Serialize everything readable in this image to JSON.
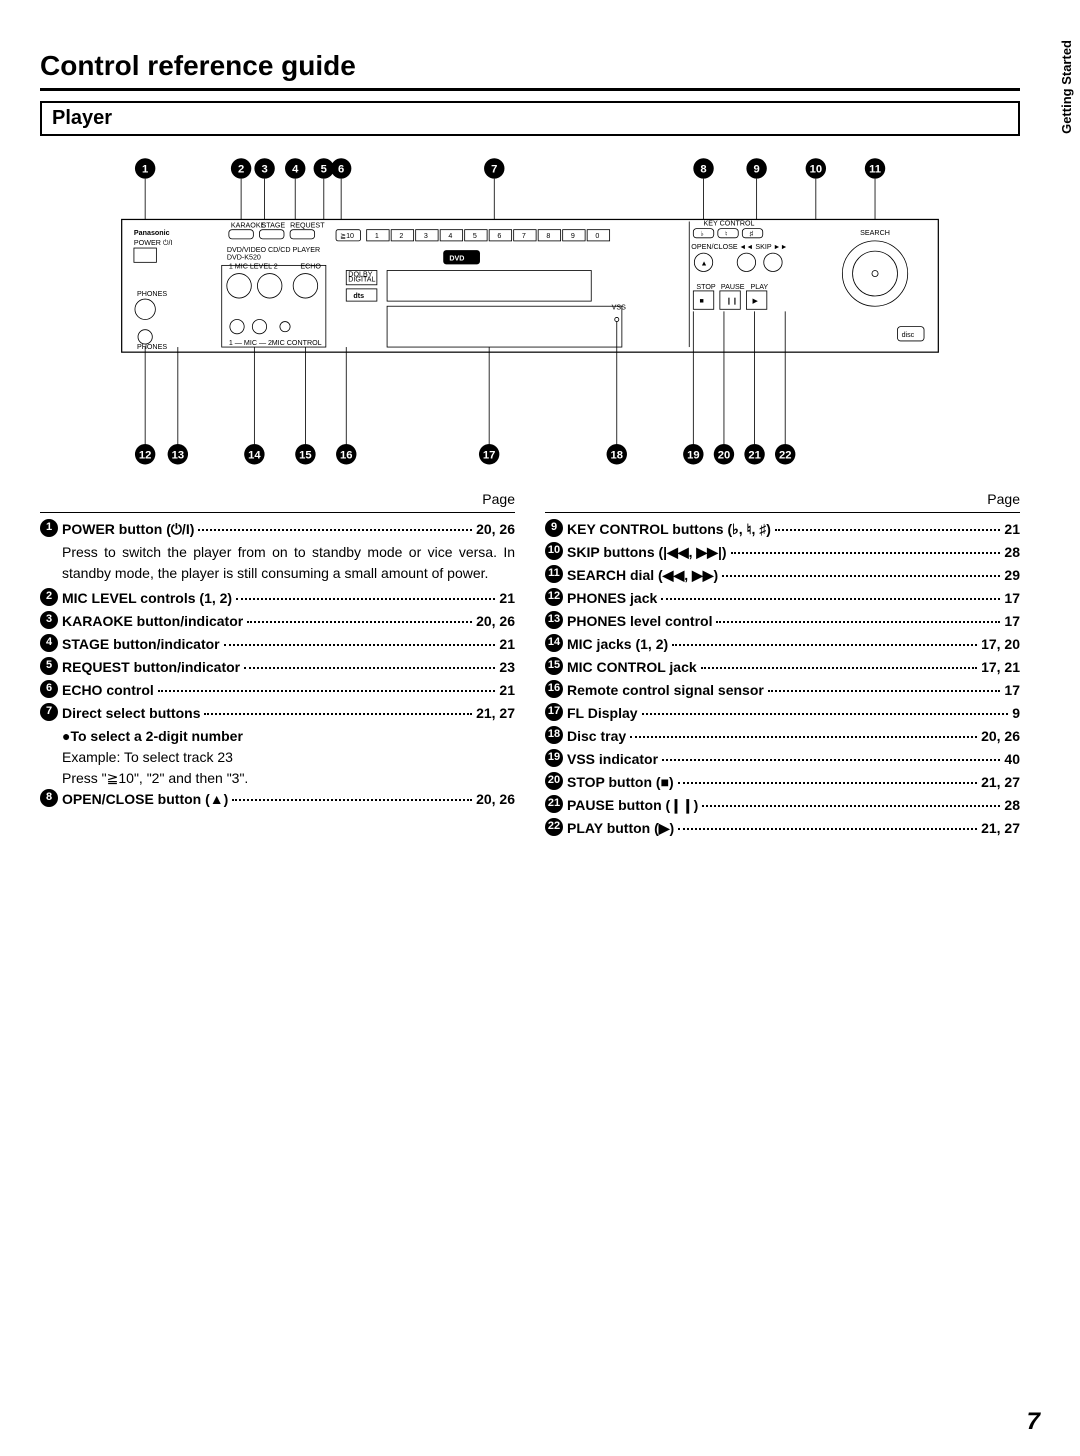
{
  "side_tab": "Getting\nStarted",
  "title": "Control reference guide",
  "section": "Player",
  "page_label": "Page",
  "page_number": "7",
  "diagram": {
    "top_callouts": [
      1,
      2,
      3,
      4,
      5,
      6,
      7,
      8,
      9,
      10,
      11
    ],
    "bottom_callouts": [
      12,
      13,
      14,
      15,
      16,
      17,
      18,
      19,
      20,
      21,
      22
    ],
    "brand": "Panasonic",
    "model_line": "DVD/VIDEO CD/CD PLAYER\nDVD-K520",
    "logo": "DVD",
    "labels": {
      "karaoke": "KARAOKE",
      "stage": "STAGE",
      "request": "REQUEST",
      "geq10": "≧10",
      "digits": [
        "1",
        "2",
        "3",
        "4",
        "5",
        "6",
        "7",
        "8",
        "9",
        "0"
      ],
      "key_control": "KEY CONTROL",
      "open_close": "OPEN/CLOSE",
      "skip": "SKIP",
      "search": "SEARCH",
      "power": "POWER ⏻/I",
      "phones": "PHONES",
      "mic_level": "MIC LEVEL",
      "echo": "ECHO",
      "dolby": "DOLBY\nDIGITAL",
      "dts": "dts",
      "mic": "MIC",
      "mic_control": "MIC CONTROL",
      "vss": "VSS",
      "stop": "STOP",
      "pause": "PAUSE",
      "play": "PLAY",
      "cd_logo": "disc"
    }
  },
  "left_items": [
    {
      "n": 1,
      "label": "POWER button (⏻/I)",
      "page": "20, 26",
      "desc": "Press to switch the player from on to standby mode or vice versa. In standby mode, the player is still consuming a small amount of power."
    },
    {
      "n": 2,
      "label": "MIC LEVEL controls (1, 2)",
      "page": "21"
    },
    {
      "n": 3,
      "label": "KARAOKE button/indicator",
      "page": "20, 26"
    },
    {
      "n": 4,
      "label": "STAGE button/indicator",
      "page": "21"
    },
    {
      "n": 5,
      "label": "REQUEST button/indicator",
      "page": "23"
    },
    {
      "n": 6,
      "label": "ECHO control",
      "page": "21"
    },
    {
      "n": 7,
      "label": "Direct select buttons",
      "page": "21, 27",
      "sub": [
        "●To select a 2-digit number",
        "Example:  To select track 23",
        "Press \"≧10\", \"2\" and then \"3\"."
      ]
    },
    {
      "n": 8,
      "label": "OPEN/CLOSE button (▲)",
      "page": "20, 26"
    }
  ],
  "right_items": [
    {
      "n": 9,
      "label": "KEY CONTROL buttons (♭, ♮, ♯)",
      "page": "21"
    },
    {
      "n": 10,
      "label": "SKIP buttons (|◀◀, ▶▶|)",
      "page": "28"
    },
    {
      "n": 11,
      "label": "SEARCH dial (◀◀, ▶▶)",
      "page": "29"
    },
    {
      "n": 12,
      "label": "PHONES jack",
      "page": "17"
    },
    {
      "n": 13,
      "label": "PHONES level control",
      "page": "17"
    },
    {
      "n": 14,
      "label": "MIC jacks (1, 2)",
      "page": "17, 20"
    },
    {
      "n": 15,
      "label": "MIC CONTROL jack",
      "page": "17, 21"
    },
    {
      "n": 16,
      "label": "Remote control signal sensor",
      "page": "17"
    },
    {
      "n": 17,
      "label": "FL Display",
      "page": "9"
    },
    {
      "n": 18,
      "label": "Disc tray",
      "page": "20, 26"
    },
    {
      "n": 19,
      "label": "VSS indicator",
      "page": "40"
    },
    {
      "n": 20,
      "label": "STOP button (■)",
      "page": "21, 27"
    },
    {
      "n": 21,
      "label": "PAUSE button (❙❙)",
      "page": "28"
    },
    {
      "n": 22,
      "label": "PLAY button (▶)",
      "page": "21, 27"
    }
  ]
}
